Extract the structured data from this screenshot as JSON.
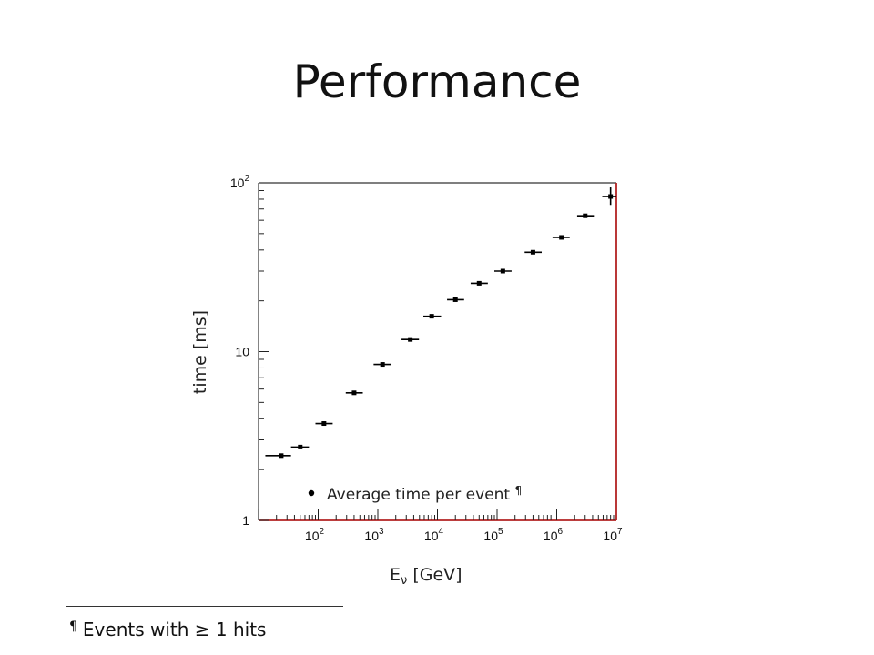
{
  "title": "Performance",
  "footnote": {
    "mark": "¶",
    "text": "Events with ≥ 1 hits"
  },
  "colors": {
    "frame_right": "#b22222",
    "frame_bottom": "#b22222",
    "frame": "#333333",
    "marker": "#000000"
  },
  "chart_data": {
    "type": "scatter",
    "xscale": "log",
    "yscale": "log",
    "xlim": [
      10,
      10000000
    ],
    "ylim": [
      1,
      100
    ],
    "xlabel": {
      "main": "E",
      "sub": "ν",
      "unit": "[GeV]"
    },
    "ylabel": "time [ms]",
    "x_ticks": [
      {
        "value": 100,
        "base": "10",
        "exp": "2"
      },
      {
        "value": 1000,
        "base": "10",
        "exp": "3"
      },
      {
        "value": 10000,
        "base": "10",
        "exp": "4"
      },
      {
        "value": 100000,
        "base": "10",
        "exp": "5"
      },
      {
        "value": 1000000,
        "base": "10",
        "exp": "6"
      },
      {
        "value": 10000000,
        "base": "10",
        "exp": "7"
      }
    ],
    "y_ticks": [
      {
        "value": 1,
        "base": "1",
        "exp": ""
      },
      {
        "value": 10,
        "base": "10",
        "exp": ""
      },
      {
        "value": 100,
        "base": "10",
        "exp": "2"
      }
    ],
    "legend": {
      "label": "Average time per event",
      "mark": "¶",
      "placement": "bottom-right"
    },
    "series": [
      {
        "points": [
          {
            "x": 24,
            "y": 2.42,
            "xlo": 13,
            "xhi": 35
          },
          {
            "x": 50,
            "y": 2.72,
            "xlo": 35,
            "xhi": 70
          },
          {
            "x": 125,
            "y": 3.75,
            "xlo": 90,
            "xhi": 175
          },
          {
            "x": 400,
            "y": 5.7,
            "xlo": 290,
            "xhi": 560
          },
          {
            "x": 1200,
            "y": 8.4,
            "xlo": 850,
            "xhi": 1650
          },
          {
            "x": 3500,
            "y": 11.8,
            "xlo": 2500,
            "xhi": 4900
          },
          {
            "x": 8000,
            "y": 16.2,
            "xlo": 5800,
            "xhi": 11500
          },
          {
            "x": 20000,
            "y": 20.3,
            "xlo": 14500,
            "xhi": 28000
          },
          {
            "x": 50000,
            "y": 25.4,
            "xlo": 36000,
            "xhi": 70000
          },
          {
            "x": 125000,
            "y": 30.0,
            "xlo": 90000,
            "xhi": 175000
          },
          {
            "x": 400000,
            "y": 38.8,
            "xlo": 290000,
            "xhi": 560000
          },
          {
            "x": 1200000,
            "y": 47.5,
            "xlo": 850000,
            "xhi": 1650000
          },
          {
            "x": 3000000,
            "y": 63.8,
            "xlo": 2200000,
            "xhi": 4200000
          },
          {
            "x": 8000000,
            "y": 83.0,
            "xlo": 5800000,
            "xhi": 10000000,
            "ylo": 74.0,
            "yhi": 94.0
          }
        ]
      }
    ]
  }
}
